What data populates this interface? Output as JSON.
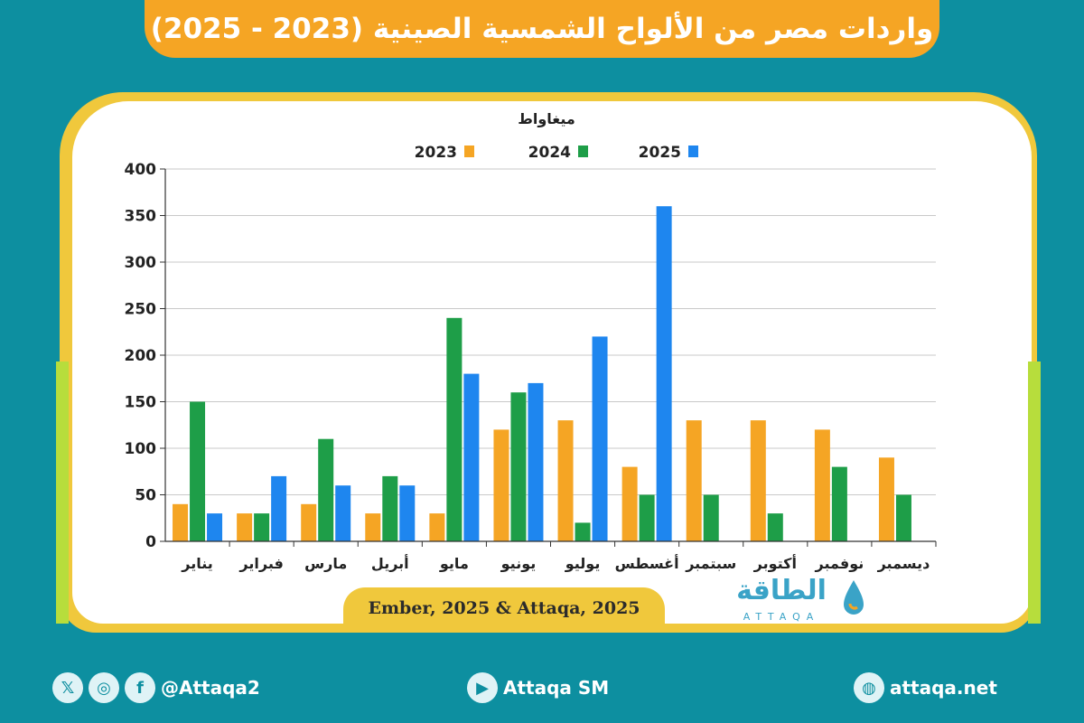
{
  "title": "واردات مصر من الألواح الشمسية الصينية (2023 - 2025)",
  "source": "Ember, 2025 & Attaqa, 2025",
  "brand": {
    "name": "الطاقة",
    "sub": "ATTAQA"
  },
  "footer": {
    "social_handle": "@Attaqa2",
    "youtube": "Attaqa SM",
    "website": "attaqa.net"
  },
  "colors": {
    "background": "#0d8fa0",
    "title_bar": "#f5a524",
    "frame": "#f0c83c",
    "s2023": "#f5a524",
    "s2024": "#1e9e48",
    "s2025": "#1e86ef"
  },
  "chart_data": {
    "type": "bar",
    "unit_label": "ميغاواط",
    "categories": [
      "يناير",
      "فبراير",
      "مارس",
      "أبريل",
      "مايو",
      "يونيو",
      "يوليو",
      "أغسطس",
      "سبتمبر",
      "أكتوبر",
      "نوفمبر",
      "ديسمبر"
    ],
    "series": [
      {
        "name": "2023",
        "color": "#f5a524",
        "values": [
          40,
          30,
          40,
          30,
          30,
          120,
          130,
          80,
          130,
          130,
          120,
          90
        ]
      },
      {
        "name": "2024",
        "color": "#1e9e48",
        "values": [
          150,
          30,
          110,
          70,
          240,
          160,
          20,
          50,
          50,
          30,
          80,
          50
        ]
      },
      {
        "name": "2025",
        "color": "#1e86ef",
        "values": [
          30,
          70,
          60,
          60,
          180,
          170,
          220,
          360,
          null,
          null,
          null,
          null
        ]
      }
    ],
    "ylim": [
      0,
      400
    ],
    "yticks": [
      0,
      50,
      100,
      150,
      200,
      250,
      300,
      350,
      400
    ],
    "grid": true,
    "legend_position": "top"
  }
}
